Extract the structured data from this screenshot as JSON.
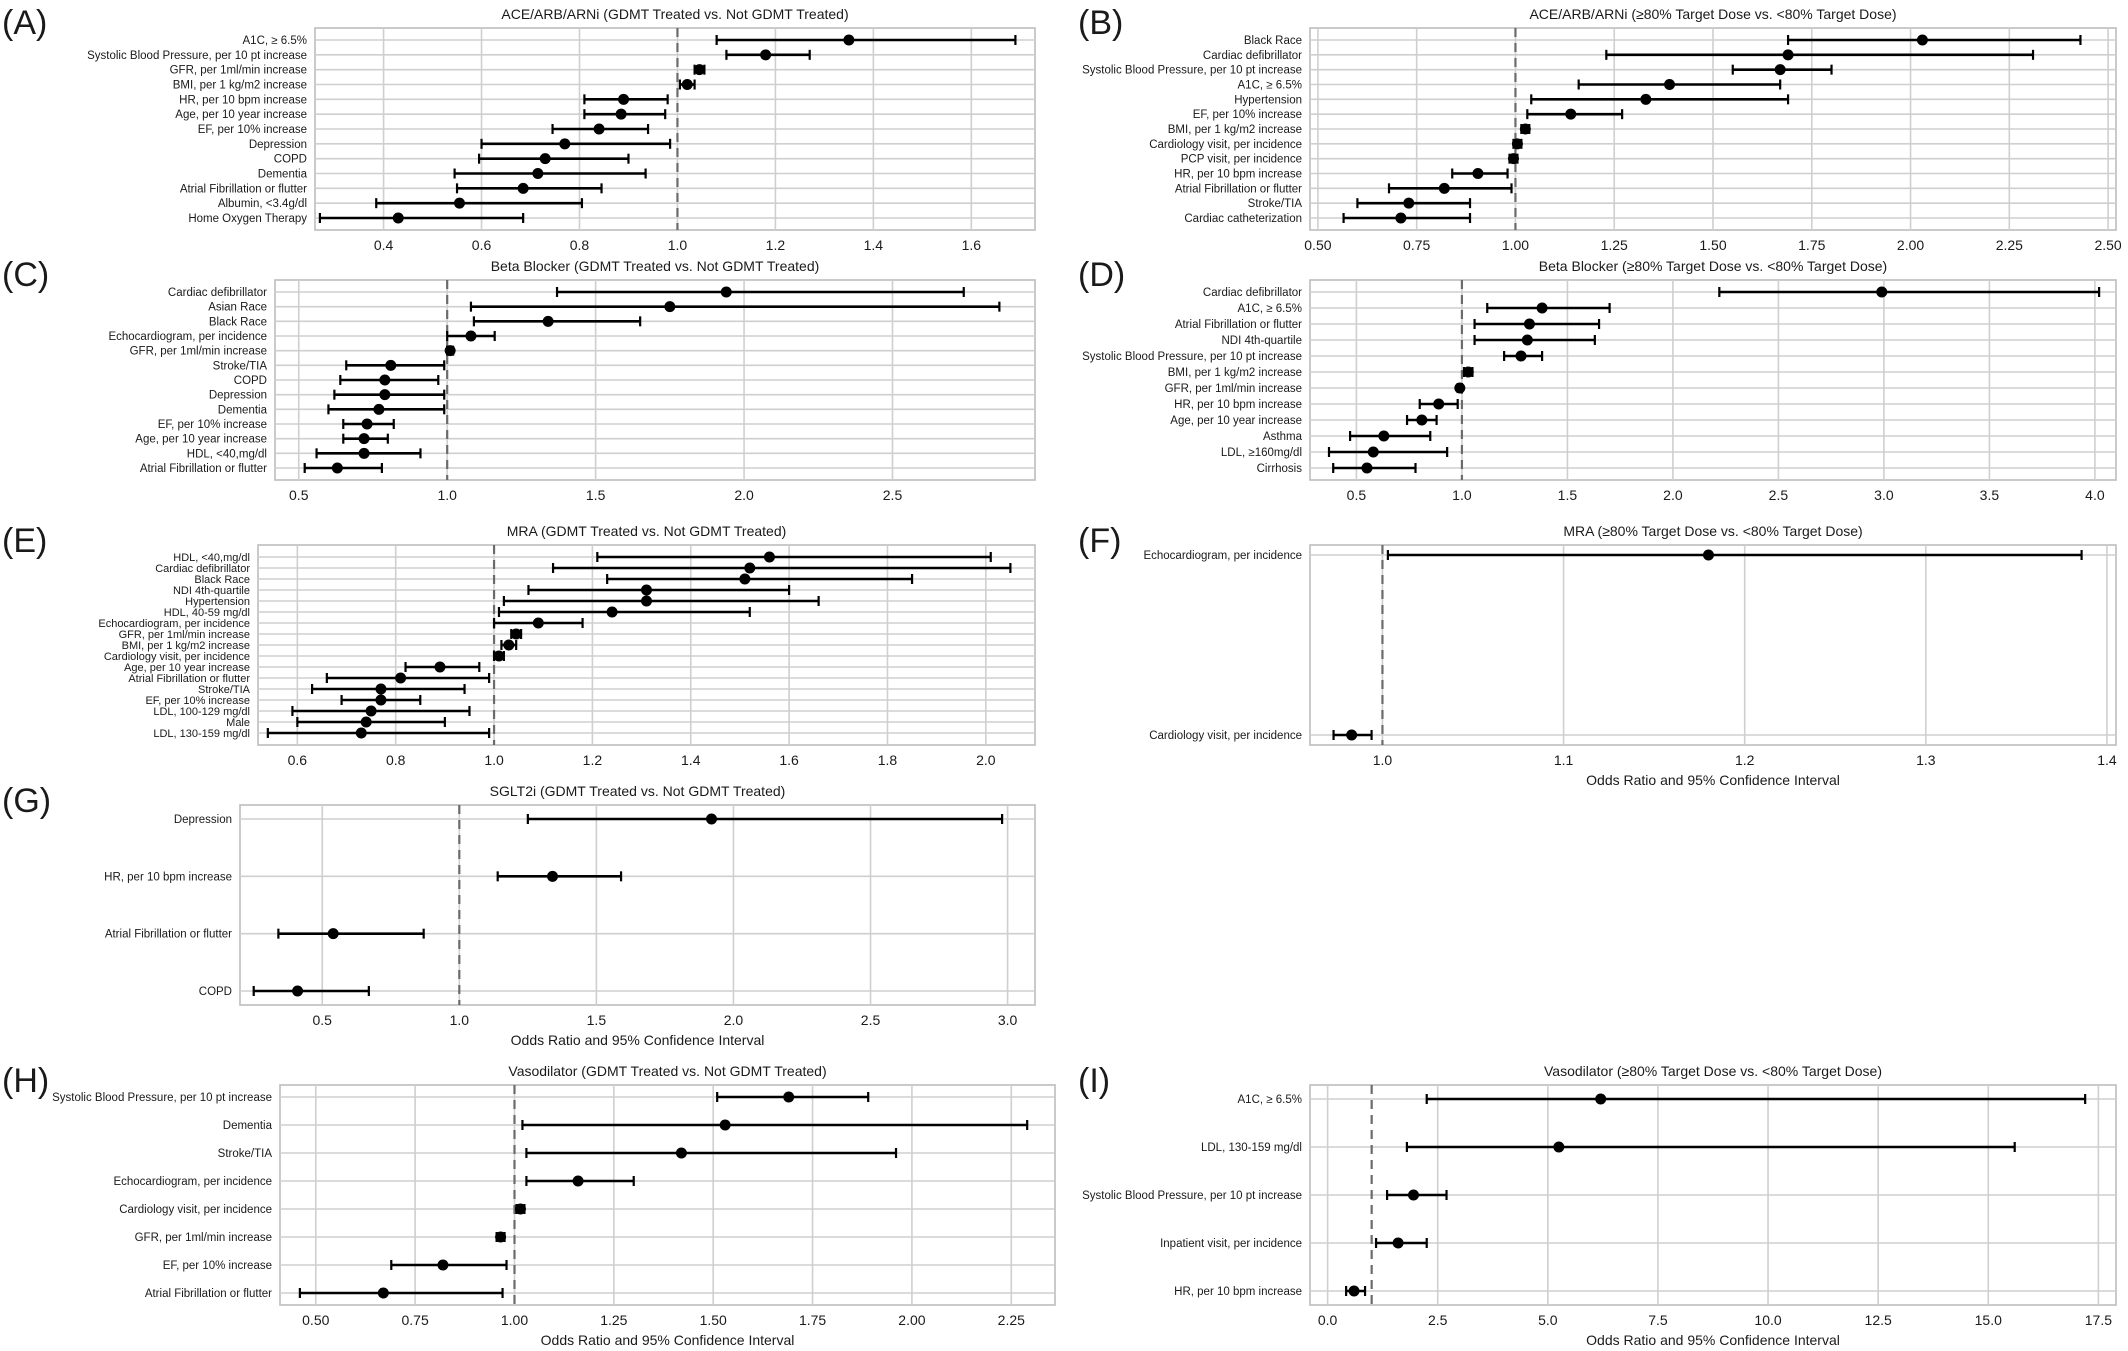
{
  "chart_data": [
    {
      "type": "scatter",
      "panel_letter": "(A)",
      "title": "ACE/ARB/ARNi (GDMT Treated vs. Not GDMT Treated)",
      "xlabel": "",
      "xlim": [
        0.26,
        1.73
      ],
      "xticks": [
        0.4,
        0.6,
        0.8,
        1.0,
        1.2,
        1.4,
        1.6
      ],
      "tick_labels": [
        "0.4",
        "0.6",
        "0.8",
        "1.0",
        "1.2",
        "1.4",
        "1.6"
      ],
      "reference_value": 1.0,
      "grid": true,
      "y_grid": true,
      "categories": [
        "A1C, ≥ 6.5%",
        "Systolic Blood Pressure, per 10 pt increase",
        "GFR, per 1ml/min increase",
        "BMI, per 1 kg/m2 increase",
        "HR, per 10 bpm increase",
        "Age, per 10 year increase",
        "EF, per 10% increase",
        "Depression",
        "COPD",
        "Dementia",
        "Atrial Fibrillation or flutter",
        "Albumin, <3.4g/dl",
        "Home Oxygen Therapy"
      ],
      "or": [
        1.35,
        1.18,
        1.045,
        1.02,
        0.89,
        0.885,
        0.84,
        0.77,
        0.73,
        0.715,
        0.685,
        0.555,
        0.43
      ],
      "lower": [
        1.08,
        1.1,
        1.035,
        1.005,
        0.81,
        0.81,
        0.745,
        0.6,
        0.595,
        0.545,
        0.55,
        0.385,
        0.27
      ],
      "upper": [
        1.69,
        1.27,
        1.055,
        1.035,
        0.98,
        0.975,
        0.94,
        0.985,
        0.9,
        0.935,
        0.845,
        0.805,
        0.685
      ]
    },
    {
      "type": "scatter",
      "panel_letter": "(B)",
      "title": "ACE/ARB/ARNi (≥80% Target Dose vs. <80% Target Dose)",
      "xlabel": "",
      "xlim": [
        0.48,
        2.52
      ],
      "xticks": [
        0.5,
        0.75,
        1.0,
        1.25,
        1.5,
        1.75,
        2.0,
        2.25,
        2.5
      ],
      "tick_labels": [
        "0.50",
        "0.75",
        "1.00",
        "1.25",
        "1.50",
        "1.75",
        "2.00",
        "2.25",
        "2.50"
      ],
      "reference_value": 1.0,
      "grid": true,
      "y_grid": true,
      "categories": [
        "Black Race",
        "Cardiac defibrillator",
        "Systolic Blood Pressure, per 10 pt increase",
        "A1C, ≥ 6.5%",
        "Hypertension",
        "EF, per 10% increase",
        "BMI, per 1 kg/m2 increase",
        "Cardiology visit, per incidence",
        "PCP visit, per incidence",
        "HR, per 10 bpm increase",
        "Atrial Fibrillation or flutter",
        "Stroke/TIA",
        "Cardiac catheterization"
      ],
      "or": [
        2.03,
        1.69,
        1.67,
        1.39,
        1.33,
        1.14,
        1.025,
        1.005,
        0.995,
        0.905,
        0.82,
        0.73,
        0.71
      ],
      "lower": [
        1.69,
        1.23,
        1.55,
        1.16,
        1.04,
        1.03,
        1.015,
        0.995,
        0.985,
        0.84,
        0.68,
        0.6,
        0.565
      ],
      "upper": [
        2.43,
        2.31,
        1.8,
        1.67,
        1.69,
        1.27,
        1.035,
        1.015,
        1.005,
        0.98,
        0.99,
        0.885,
        0.885
      ]
    },
    {
      "type": "scatter",
      "panel_letter": "(C)",
      "title": "Beta Blocker (GDMT Treated vs. Not GDMT Treated)",
      "xlabel": "",
      "xlim": [
        0.42,
        2.98
      ],
      "xticks": [
        0.5,
        1.0,
        1.5,
        2.0,
        2.5
      ],
      "tick_labels": [
        "0.5",
        "1.0",
        "1.5",
        "2.0",
        "2.5"
      ],
      "reference_value": 1.0,
      "grid": true,
      "y_grid": true,
      "categories": [
        "Cardiac defibrillator",
        "Asian Race",
        "Black Race",
        "Echocardiogram, per incidence",
        "GFR, per 1ml/min increase",
        "Stroke/TIA",
        "COPD",
        "Depression",
        "Dementia",
        "EF, per 10% increase",
        "Age, per 10 year increase",
        "HDL, <40,mg/dl",
        "Atrial Fibrillation or flutter"
      ],
      "or": [
        1.94,
        1.75,
        1.34,
        1.08,
        1.01,
        0.81,
        0.79,
        0.79,
        0.77,
        0.73,
        0.72,
        0.72,
        0.63
      ],
      "lower": [
        1.37,
        1.08,
        1.09,
        1.0,
        1.0,
        0.66,
        0.64,
        0.62,
        0.6,
        0.65,
        0.65,
        0.56,
        0.52
      ],
      "upper": [
        2.74,
        2.86,
        1.65,
        1.16,
        1.02,
        0.99,
        0.97,
        0.99,
        0.99,
        0.82,
        0.8,
        0.91,
        0.78
      ]
    },
    {
      "type": "scatter",
      "panel_letter": "(D)",
      "title": "Beta Blocker (≥80% Target Dose vs. <80% Target Dose)",
      "xlabel": "",
      "xlim": [
        0.28,
        4.1
      ],
      "xticks": [
        0.5,
        1.0,
        1.5,
        2.0,
        2.5,
        3.0,
        3.5,
        4.0
      ],
      "tick_labels": [
        "0.5",
        "1.0",
        "1.5",
        "2.0",
        "2.5",
        "3.0",
        "3.5",
        "4.0"
      ],
      "reference_value": 1.0,
      "grid": true,
      "y_grid": true,
      "categories": [
        "Cardiac defibrillator",
        "A1C, ≥ 6.5%",
        "Atrial Fibrillation or flutter",
        "NDI 4th-quartile",
        "Systolic Blood Pressure, per 10 pt increase",
        "BMI, per 1 kg/m2 increase",
        "GFR, per 1ml/min increase",
        "HR, per 10 bpm increase",
        "Age, per 10 year increase",
        "Asthma",
        "LDL, ≥160mg/dl",
        "Cirrhosis"
      ],
      "or": [
        2.99,
        1.38,
        1.32,
        1.31,
        1.28,
        1.03,
        0.99,
        0.89,
        0.81,
        0.63,
        0.58,
        0.55
      ],
      "lower": [
        2.22,
        1.12,
        1.06,
        1.06,
        1.2,
        1.01,
        0.98,
        0.8,
        0.74,
        0.47,
        0.37,
        0.39
      ],
      "upper": [
        4.02,
        1.7,
        1.65,
        1.63,
        1.38,
        1.05,
        1.0,
        0.98,
        0.88,
        0.85,
        0.93,
        0.78
      ]
    },
    {
      "type": "scatter",
      "panel_letter": "(E)",
      "title": "MRA (GDMT Treated vs. Not GDMT Treated)",
      "xlabel": "",
      "xlim": [
        0.52,
        2.1
      ],
      "xticks": [
        0.6,
        0.8,
        1.0,
        1.2,
        1.4,
        1.6,
        1.8,
        2.0
      ],
      "tick_labels": [
        "0.6",
        "0.8",
        "1.0",
        "1.2",
        "1.4",
        "1.6",
        "1.8",
        "2.0"
      ],
      "reference_value": 1.0,
      "grid": true,
      "y_grid": true,
      "categories": [
        "HDL, <40,mg/dl",
        "Cardiac defibrillator",
        "Black Race",
        "NDI 4th-quartile",
        "Hypertension",
        "HDL, 40-59 mg/dl",
        "Echocardiogram, per incidence",
        "GFR, per 1ml/min increase",
        "BMI, per 1 kg/m2 increase",
        "Cardiology visit, per incidence",
        "Age, per 10 year increase",
        "Atrial Fibrillation or flutter",
        "Stroke/TIA",
        "EF, per 10% increase",
        "LDL, 100-129 mg/dl",
        "Male",
        "LDL, 130-159 mg/dl"
      ],
      "or": [
        1.56,
        1.52,
        1.51,
        1.31,
        1.31,
        1.24,
        1.09,
        1.045,
        1.03,
        1.01,
        0.89,
        0.81,
        0.77,
        0.77,
        0.75,
        0.74,
        0.73
      ],
      "lower": [
        1.21,
        1.12,
        1.23,
        1.07,
        1.02,
        1.01,
        1.0,
        1.035,
        1.015,
        1.0,
        0.82,
        0.66,
        0.63,
        0.69,
        0.59,
        0.6,
        0.54
      ],
      "upper": [
        2.01,
        2.05,
        1.85,
        1.6,
        1.66,
        1.52,
        1.18,
        1.055,
        1.045,
        1.02,
        0.97,
        0.99,
        0.94,
        0.85,
        0.95,
        0.9,
        0.99
      ]
    },
    {
      "type": "scatter",
      "panel_letter": "(F)",
      "title": "MRA (≥80% Target Dose vs. <80% Target Dose)",
      "xlabel": "Odds Ratio and 95% Confidence Interval",
      "xlim": [
        0.96,
        1.405
      ],
      "xticks": [
        1.0,
        1.1,
        1.2,
        1.3,
        1.4
      ],
      "tick_labels": [
        "1.0",
        "1.1",
        "1.2",
        "1.3",
        "1.4"
      ],
      "reference_value": 1.0,
      "grid": true,
      "y_grid": true,
      "categories": [
        "Echocardiogram, per incidence",
        "Cardiology visit, per incidence"
      ],
      "or": [
        1.18,
        0.983
      ],
      "lower": [
        1.003,
        0.973
      ],
      "upper": [
        1.386,
        0.994
      ]
    },
    {
      "type": "scatter",
      "panel_letter": "(G)",
      "title": "SGLT2i (GDMT Treated vs. Not GDMT Treated)",
      "xlabel": "Odds Ratio and 95% Confidence Interval",
      "xlim": [
        0.2,
        3.1
      ],
      "xticks": [
        0.5,
        1.0,
        1.5,
        2.0,
        2.5,
        3.0
      ],
      "tick_labels": [
        "0.5",
        "1.0",
        "1.5",
        "2.0",
        "2.5",
        "3.0"
      ],
      "reference_value": 1.0,
      "grid": true,
      "y_grid": true,
      "categories": [
        "Depression",
        "HR, per 10 bpm increase",
        "Atrial Fibrillation or flutter",
        "COPD"
      ],
      "or": [
        1.92,
        1.34,
        0.54,
        0.41
      ],
      "lower": [
        1.25,
        1.14,
        0.34,
        0.25
      ],
      "upper": [
        2.98,
        1.59,
        0.87,
        0.67
      ]
    },
    {
      "type": "scatter",
      "panel_letter": "(H)",
      "title": "Vasodilator (GDMT Treated vs. Not GDMT Treated)",
      "xlabel": "Odds Ratio and 95% Confidence Interval",
      "xlim": [
        0.41,
        2.36
      ],
      "xticks": [
        0.5,
        0.75,
        1.0,
        1.25,
        1.5,
        1.75,
        2.0,
        2.25
      ],
      "tick_labels": [
        "0.50",
        "0.75",
        "1.00",
        "1.25",
        "1.50",
        "1.75",
        "2.00",
        "2.25"
      ],
      "reference_value": 1.0,
      "grid": true,
      "y_grid": true,
      "categories": [
        "Systolic Blood Pressure, per 10 pt increase",
        "Dementia",
        "Stroke/TIA",
        "Echocardiogram, per incidence",
        "Cardiology visit, per incidence",
        "GFR, per 1ml/min increase",
        "EF, per 10% increase",
        "Atrial Fibrillation or flutter"
      ],
      "or": [
        1.69,
        1.53,
        1.42,
        1.16,
        1.015,
        0.965,
        0.82,
        0.67
      ],
      "lower": [
        1.51,
        1.02,
        1.03,
        1.03,
        1.005,
        0.955,
        0.69,
        0.46
      ],
      "upper": [
        1.89,
        2.29,
        1.96,
        1.3,
        1.025,
        0.975,
        0.98,
        0.97
      ]
    },
    {
      "type": "scatter",
      "panel_letter": "(I)",
      "title": "Vasodilator (≥80% Target Dose vs. <80% Target Dose)",
      "xlabel": "Odds Ratio and 95% Confidence Interval",
      "xlim": [
        -0.4,
        17.9
      ],
      "xticks": [
        0,
        2.5,
        5.0,
        7.5,
        10.0,
        12.5,
        15.0,
        17.5
      ],
      "tick_labels": [
        "0.0",
        "2.5",
        "5.0",
        "7.5",
        "10.0",
        "12.5",
        "15.0",
        "17.5"
      ],
      "reference_value": 1.0,
      "grid": true,
      "y_grid": true,
      "categories": [
        "A1C, ≥ 6.5%",
        "LDL, 130-159 mg/dl",
        "Systolic Blood Pressure, per 10 pt increase",
        "Inpatient visit, per incidence",
        "HR, per 10 bpm increase"
      ],
      "or": [
        6.2,
        5.25,
        1.95,
        1.6,
        0.6
      ],
      "lower": [
        2.25,
        1.8,
        1.35,
        1.1,
        0.42
      ],
      "upper": [
        17.2,
        15.6,
        2.7,
        2.25,
        0.85
      ]
    }
  ]
}
